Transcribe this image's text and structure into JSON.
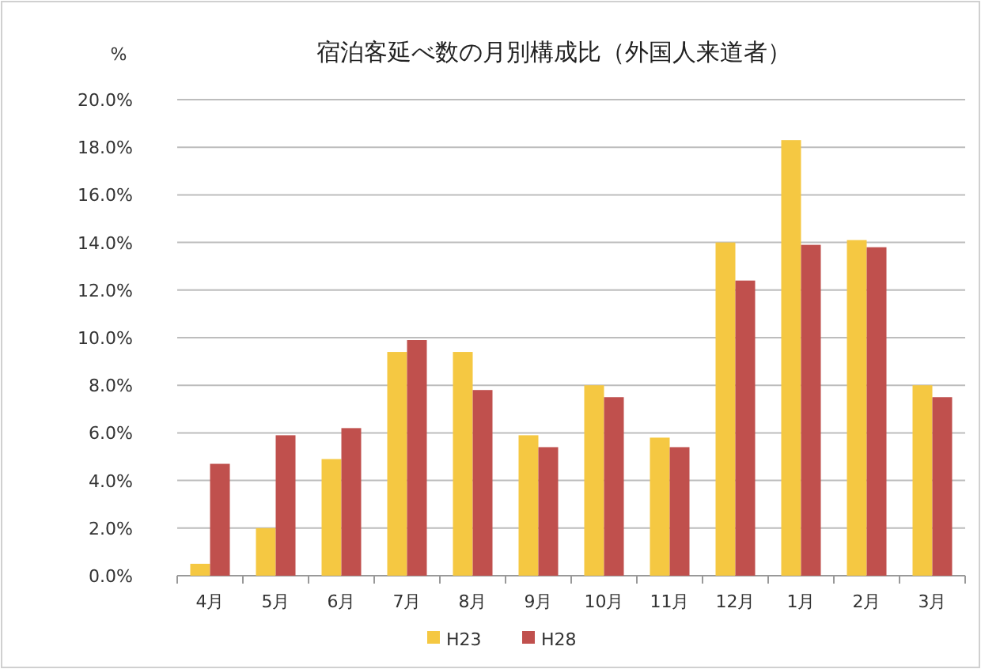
{
  "chart_data": {
    "type": "bar",
    "title": "宿泊客延べ数の月別構成比（外国人来道者）",
    "ylabel": "%",
    "categories": [
      "4月",
      "5月",
      "6月",
      "7月",
      "8月",
      "9月",
      "10月",
      "11月",
      "12月",
      "1月",
      "2月",
      "3月"
    ],
    "series": [
      {
        "name": "H23",
        "color": "#f5c842",
        "values": [
          0.5,
          2.0,
          4.9,
          9.4,
          9.4,
          5.9,
          8.0,
          5.8,
          14.0,
          18.3,
          14.1,
          8.0
        ]
      },
      {
        "name": "H28",
        "color": "#c0504d",
        "values": [
          4.7,
          5.9,
          6.2,
          9.9,
          7.8,
          5.4,
          7.5,
          5.4,
          12.4,
          13.9,
          13.8,
          7.5
        ]
      }
    ],
    "ylim": [
      0,
      20
    ],
    "yticks": [
      {
        "value": 0,
        "label": "0.0%"
      },
      {
        "value": 2,
        "label": "2.0%"
      },
      {
        "value": 4,
        "label": "4.0%"
      },
      {
        "value": 6,
        "label": "6.0%"
      },
      {
        "value": 8,
        "label": "8.0%"
      },
      {
        "value": 10,
        "label": "10.0%"
      },
      {
        "value": 12,
        "label": "12.0%"
      },
      {
        "value": 14,
        "label": "14.0%"
      },
      {
        "value": 16,
        "label": "16.0%"
      },
      {
        "value": 18,
        "label": "18.0%"
      },
      {
        "value": 20,
        "label": "20.0%"
      }
    ],
    "grid": "y",
    "legend": "bottom"
  }
}
